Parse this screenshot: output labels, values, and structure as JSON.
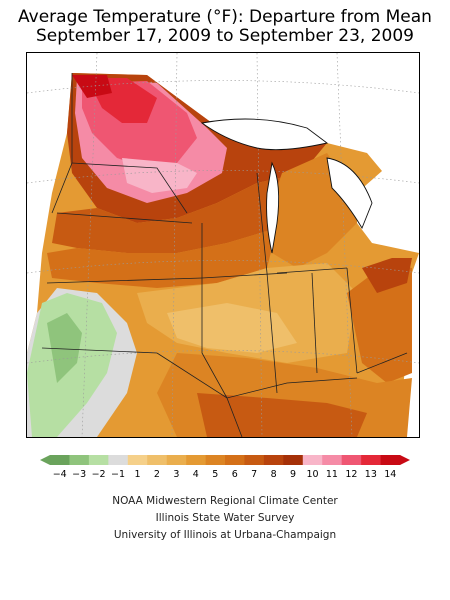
{
  "title": {
    "line1": "Average Temperature (°F): Departure from Mean",
    "line2": "September 17, 2009 to September 23, 2009"
  },
  "map": {
    "region": "Midwestern United States",
    "variable": "Average Temperature departure from mean (°F)",
    "pattern": {
      "max_area": "northern Minnesota, 11–14 °F above mean",
      "min_area": "Kansas / southwest corner, up to 4 °F below mean",
      "dominant": "3–7 °F above mean across most of the region"
    }
  },
  "legend": {
    "labels": [
      "−4",
      "−3",
      "−2",
      "−1",
      "1",
      "2",
      "3",
      "4",
      "5",
      "6",
      "7",
      "8",
      "9",
      "10",
      "11",
      "12",
      "13",
      "14"
    ],
    "colors": [
      "#6aa35c",
      "#8fc47c",
      "#b6dfa3",
      "#dcdcdc",
      "#f5d08a",
      "#efbf6a",
      "#eaae4d",
      "#e49a33",
      "#dc8423",
      "#d47018",
      "#c75a12",
      "#b8430d",
      "#a53008",
      "#f8b5c8",
      "#f58ba6",
      "#ef5672",
      "#e42838",
      "#c80a14"
    ]
  },
  "credits": [
    "NOAA Midwestern Regional Climate Center",
    "Illinois State Water Survey",
    "University of Illinois at Urbana-Champaign"
  ]
}
